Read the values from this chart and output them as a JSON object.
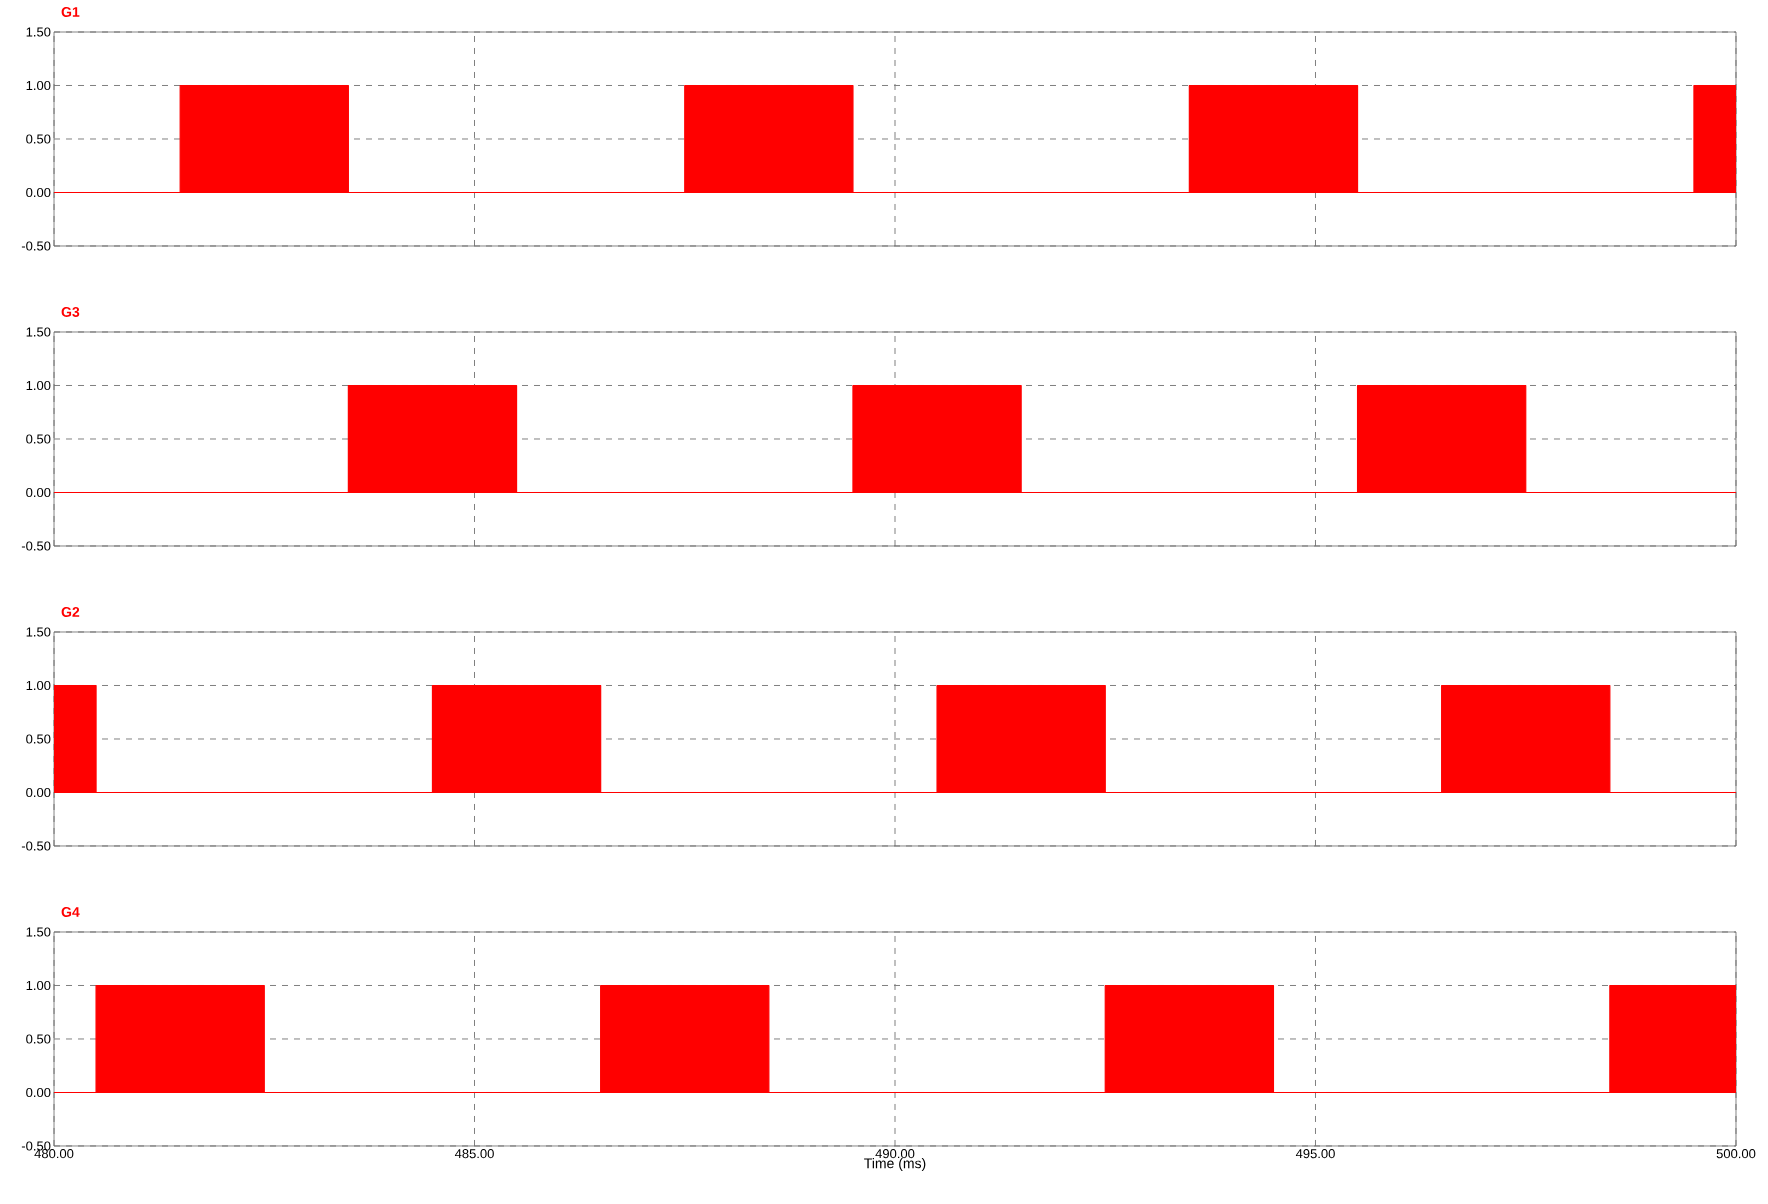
{
  "chart_data": [
    {
      "type": "area",
      "title": "G1",
      "xlim": [
        480,
        500
      ],
      "ylim": [
        -0.5,
        1.5
      ],
      "grid": true,
      "tick_labels": "y",
      "xticks": [
        {
          "value": 480,
          "label": null
        },
        {
          "value": 485,
          "label": null
        },
        {
          "value": 490,
          "label": null
        },
        {
          "value": 495,
          "label": null
        },
        {
          "value": 500,
          "label": null
        }
      ],
      "yticks": [
        {
          "value": -0.5,
          "label": "-0.50"
        },
        {
          "value": 0,
          "label": "0.00"
        },
        {
          "value": 0.5,
          "label": "0.50"
        },
        {
          "value": 1,
          "label": "1.00"
        },
        {
          "value": 1.5,
          "label": "1.50"
        }
      ],
      "series": [
        {
          "color": "#ff0000",
          "x": [
            480,
            481.5,
            481.5,
            483.5,
            483.5,
            487.5,
            487.5,
            489.5,
            489.5,
            493.5,
            493.5,
            495.5,
            495.5,
            499.5,
            499.5,
            500,
            500
          ],
          "values": [
            0,
            0,
            1,
            1,
            0,
            0,
            1,
            1,
            0,
            0,
            1,
            1,
            0,
            0,
            1,
            1,
            0
          ]
        }
      ]
    },
    {
      "type": "area",
      "title": "G3",
      "xlim": [
        480,
        500
      ],
      "ylim": [
        -0.5,
        1.5
      ],
      "grid": true,
      "tick_labels": "y",
      "xticks": [
        {
          "value": 480,
          "label": null
        },
        {
          "value": 485,
          "label": null
        },
        {
          "value": 490,
          "label": null
        },
        {
          "value": 495,
          "label": null
        },
        {
          "value": 500,
          "label": null
        }
      ],
      "yticks": [
        {
          "value": -0.5,
          "label": "-0.50"
        },
        {
          "value": 0,
          "label": "0.00"
        },
        {
          "value": 0.5,
          "label": "0.50"
        },
        {
          "value": 1,
          "label": "1.00"
        },
        {
          "value": 1.5,
          "label": "1.50"
        }
      ],
      "series": [
        {
          "color": "#ff0000",
          "x": [
            480,
            483.5,
            483.5,
            485.5,
            485.5,
            489.5,
            489.5,
            491.5,
            491.5,
            495.5,
            495.5,
            497.5,
            497.5,
            500
          ],
          "values": [
            0,
            0,
            1,
            1,
            0,
            0,
            1,
            1,
            0,
            0,
            1,
            1,
            0,
            0
          ]
        }
      ]
    },
    {
      "type": "area",
      "title": "G2",
      "xlim": [
        480,
        500
      ],
      "ylim": [
        -0.5,
        1.5
      ],
      "grid": true,
      "tick_labels": "y",
      "xticks": [
        {
          "value": 480,
          "label": null
        },
        {
          "value": 485,
          "label": null
        },
        {
          "value": 490,
          "label": null
        },
        {
          "value": 495,
          "label": null
        },
        {
          "value": 500,
          "label": null
        }
      ],
      "yticks": [
        {
          "value": -0.5,
          "label": "-0.50"
        },
        {
          "value": 0,
          "label": "0.00"
        },
        {
          "value": 0.5,
          "label": "0.50"
        },
        {
          "value": 1,
          "label": "1.00"
        },
        {
          "value": 1.5,
          "label": "1.50"
        }
      ],
      "series": [
        {
          "color": "#ff0000",
          "x": [
            480,
            480,
            480.5,
            480.5,
            484.5,
            484.5,
            486.5,
            486.5,
            490.5,
            490.5,
            492.5,
            492.5,
            496.5,
            496.5,
            498.5,
            498.5,
            500
          ],
          "values": [
            0,
            1,
            1,
            0,
            0,
            1,
            1,
            0,
            0,
            1,
            1,
            0,
            0,
            1,
            1,
            0,
            0
          ]
        }
      ]
    },
    {
      "type": "area",
      "title": "G4",
      "xlabel": "Time (ms)",
      "xlim": [
        480,
        500
      ],
      "ylim": [
        -0.5,
        1.5
      ],
      "grid": true,
      "xticks": [
        {
          "value": 480,
          "label": "480.00"
        },
        {
          "value": 485,
          "label": "485.00"
        },
        {
          "value": 490,
          "label": "490.00"
        },
        {
          "value": 495,
          "label": "495.00"
        },
        {
          "value": 500,
          "label": "500.00"
        }
      ],
      "yticks": [
        {
          "value": -0.5,
          "label": "-0.50"
        },
        {
          "value": 0,
          "label": "0.00"
        },
        {
          "value": 0.5,
          "label": "0.50"
        },
        {
          "value": 1,
          "label": "1.00"
        },
        {
          "value": 1.5,
          "label": "1.50"
        }
      ],
      "series": [
        {
          "color": "#ff0000",
          "x": [
            480,
            480.5,
            480.5,
            482.5,
            482.5,
            486.5,
            486.5,
            488.5,
            488.5,
            492.5,
            492.5,
            494.5,
            494.5,
            498.5,
            498.5,
            500,
            500
          ],
          "values": [
            0,
            0,
            1,
            1,
            0,
            0,
            1,
            1,
            0,
            0,
            1,
            1,
            0,
            0,
            1,
            1,
            0
          ]
        }
      ]
    }
  ]
}
